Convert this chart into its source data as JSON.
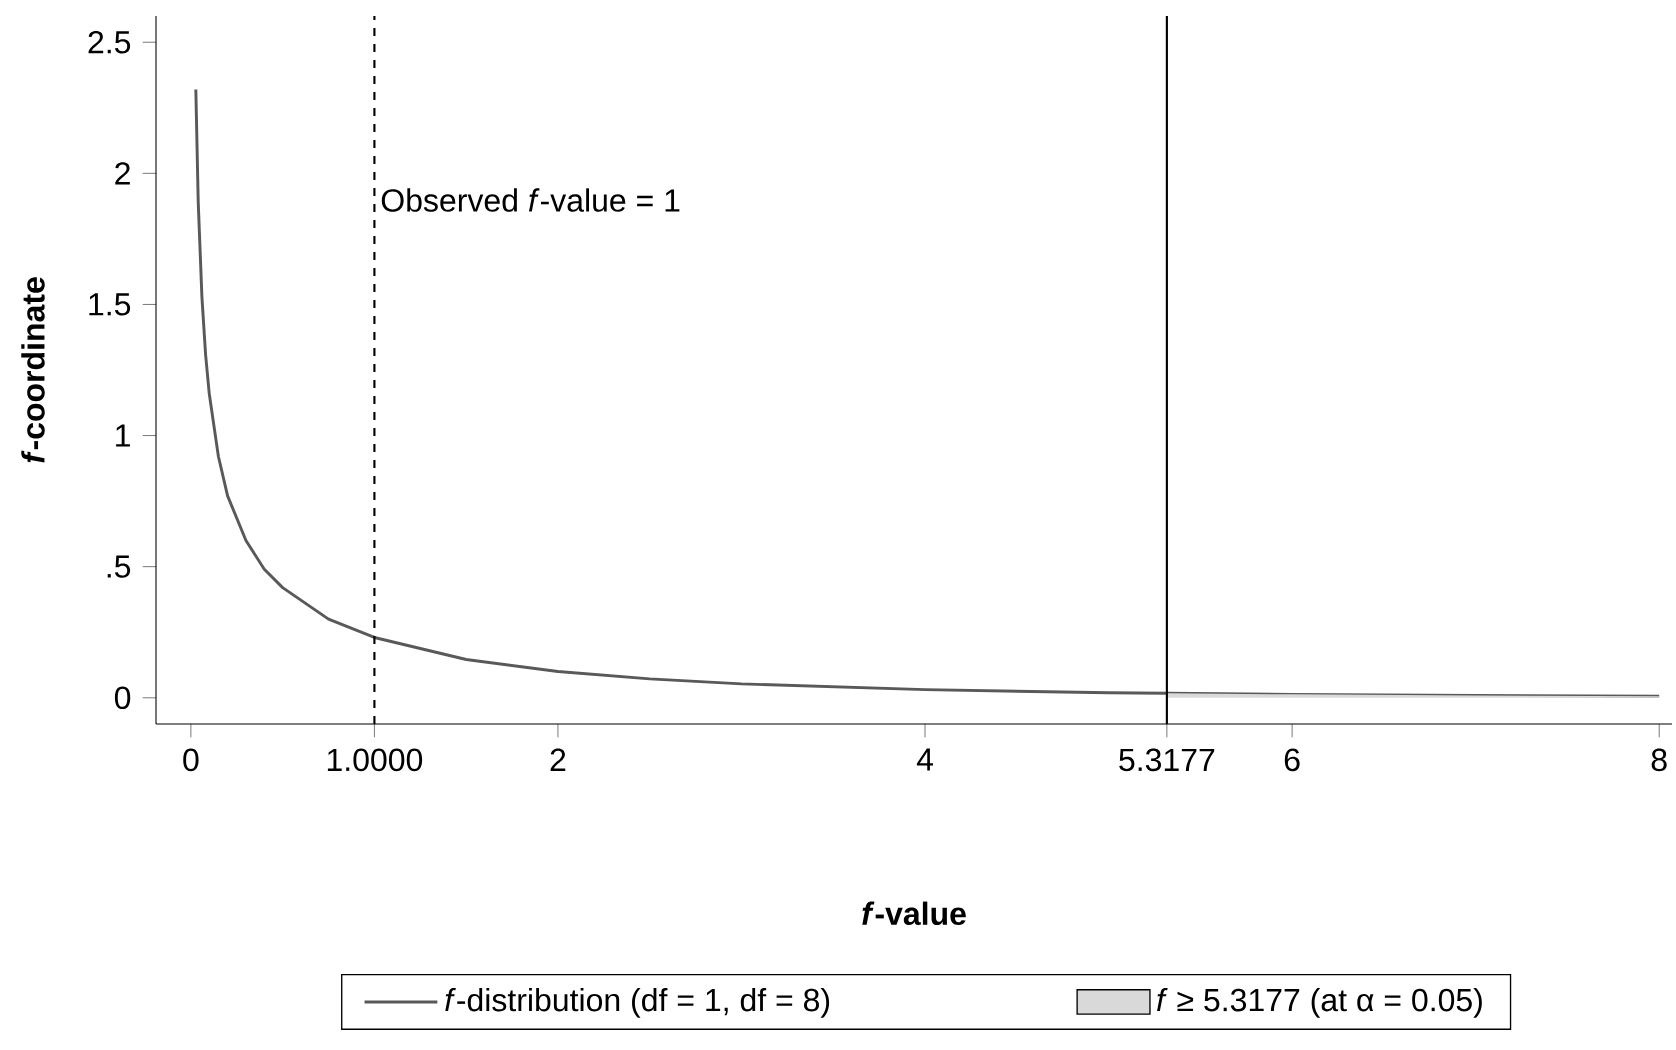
{
  "chart_data": {
    "type": "line",
    "xlabel": "*f*-value",
    "ylabel": "*f*-coordinate",
    "series": [
      {
        "name": "*f*-distribution (df = 1, df = 8)",
        "type": "line",
        "color": "#595959",
        "x": [
          0.027,
          0.04,
          0.06,
          0.08,
          0.1,
          0.15,
          0.2,
          0.3,
          0.4,
          0.5,
          0.75,
          1,
          1.5,
          2,
          2.5,
          3,
          4,
          5,
          5.3177,
          6,
          7,
          8
        ],
        "values": [
          2.32,
          1.89,
          1.53,
          1.31,
          1.16,
          0.92,
          0.77,
          0.6,
          0.49,
          0.42,
          0.3,
          0.23,
          0.146,
          0.1,
          0.072,
          0.053,
          0.031,
          0.019,
          0.017,
          0.013,
          0.009,
          0.006
        ]
      },
      {
        "name": "*f* ≥ 5.3177 (at α = 0.05)",
        "type": "area",
        "color": "#d9d9d9",
        "x": [
          5.3177,
          6,
          7,
          8
        ],
        "values": [
          0.017,
          0.013,
          0.009,
          0.006
        ]
      }
    ],
    "xlim": [
      -0.19,
      8.07
    ],
    "ylim": [
      -0.1,
      2.6
    ],
    "xticks": [
      0,
      {
        "value": 1,
        "label": "1.0000"
      },
      2,
      4,
      5.3177,
      6,
      8
    ],
    "yticks": [
      0,
      {
        "value": 0.5,
        "label": ".5"
      },
      1,
      1.5,
      2,
      2.5
    ],
    "ref_lines": [
      {
        "axis": "x",
        "value": 1,
        "label": "Observed *f*-value = 1",
        "line_style": "dashed",
        "color": "#000000"
      },
      {
        "axis": "x",
        "value": 5.3177,
        "line_style": "solid",
        "color": "#000000"
      }
    ],
    "legend": "bottom"
  }
}
